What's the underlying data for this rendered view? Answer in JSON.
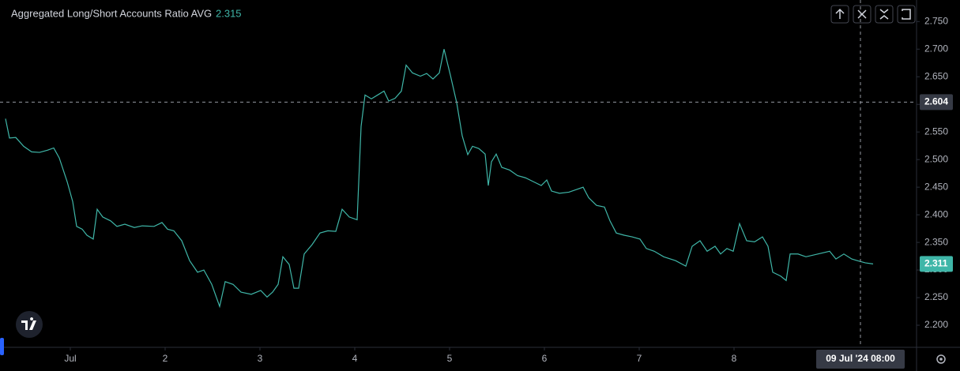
{
  "chart_data": {
    "type": "line",
    "title": "Aggregated Long/Short Accounts Ratio AVG",
    "legend_value": 2.315,
    "last_value": 2.311,
    "color": "#3fb6a8",
    "crosshair": {
      "y": 2.604,
      "x": {
        "value": 200,
        "label": "09 Jul '24 08:00"
      }
    },
    "x": [
      -16.4,
      -15.4,
      -13.8,
      -11.8,
      -9.8,
      -7.8,
      -5.8,
      -4.2,
      -2.8,
      -0.8,
      0.6,
      1.6,
      3,
      4.2,
      5.8,
      6.8,
      8.2,
      10.2,
      11.8,
      13.8,
      16.2,
      18.2,
      21.2,
      23.2,
      24.6,
      26.2,
      28.2,
      30.2,
      32.2,
      33.8,
      35.8,
      37.8,
      39.2,
      41.2,
      43.2,
      45.8,
      48.2,
      49.8,
      51.2,
      52.6,
      53.8,
      55.4,
      56.6,
      57.8,
      59.2,
      61.2,
      63.2,
      65.2,
      67.2,
      68.8,
      70.6,
      72.6,
      73.6,
      74.6,
      76.2,
      77.8,
      79.4,
      80.6,
      82.2,
      83.8,
      85,
      86.6,
      88.6,
      90.2,
      91.8,
      93.4,
      94.6,
      96.2,
      97.8,
      99.2,
      100.6,
      101.8,
      103.4,
      105,
      105.8,
      106.6,
      107.8,
      109.2,
      111.2,
      113.2,
      115.2,
      117.2,
      119.2,
      120.6,
      121.8,
      123.8,
      126.2,
      128.2,
      129.8,
      131.2,
      133.2,
      135.2,
      136.6,
      138.2,
      140.2,
      142.2,
      144.2,
      145.8,
      147.8,
      150.2,
      153.2,
      155.8,
      157.4,
      159.4,
      161.2,
      163.2,
      164.6,
      166.2,
      167.8,
      169.4,
      171.2,
      173.2,
      175.2,
      176.6,
      177.8,
      179.8,
      181.2,
      182.2,
      184.2,
      186.2,
      189.2,
      192.2,
      193.8,
      195.8,
      197.8,
      199.2,
      201.2,
      203.2
    ],
    "values": [
      2.574,
      2.539,
      2.54,
      2.524,
      2.514,
      2.513,
      2.517,
      2.521,
      2.503,
      2.46,
      2.424,
      2.379,
      2.374,
      2.363,
      2.356,
      2.41,
      2.396,
      2.389,
      2.379,
      2.383,
      2.377,
      2.38,
      2.379,
      2.386,
      2.374,
      2.371,
      2.353,
      2.317,
      2.296,
      2.3,
      2.274,
      2.234,
      2.279,
      2.274,
      2.26,
      2.256,
      2.263,
      2.251,
      2.26,
      2.274,
      2.324,
      2.31,
      2.267,
      2.267,
      2.329,
      2.346,
      2.367,
      2.371,
      2.37,
      2.41,
      2.396,
      2.391,
      2.56,
      2.617,
      2.61,
      2.617,
      2.624,
      2.606,
      2.611,
      2.624,
      2.671,
      2.657,
      2.651,
      2.656,
      2.646,
      2.657,
      2.7,
      2.653,
      2.603,
      2.543,
      2.509,
      2.524,
      2.52,
      2.51,
      2.453,
      2.496,
      2.51,
      2.486,
      2.481,
      2.471,
      2.467,
      2.46,
      2.453,
      2.463,
      2.443,
      2.439,
      2.441,
      2.446,
      2.45,
      2.431,
      2.417,
      2.414,
      2.389,
      2.367,
      2.363,
      2.36,
      2.356,
      2.339,
      2.334,
      2.324,
      2.317,
      2.307,
      2.343,
      2.353,
      2.334,
      2.343,
      2.329,
      2.339,
      2.334,
      2.384,
      2.353,
      2.351,
      2.36,
      2.343,
      2.296,
      2.289,
      2.281,
      2.329,
      2.329,
      2.324,
      2.329,
      2.334,
      2.32,
      2.329,
      2.32,
      2.317,
      2.313,
      2.311
    ],
    "xlim": [
      -17.8,
      214.2
    ],
    "xticks": [
      {
        "value": 0,
        "label": "Jul"
      },
      {
        "value": 24,
        "label": "2"
      },
      {
        "value": 48,
        "label": "3"
      },
      {
        "value": 72,
        "label": "4"
      },
      {
        "value": 96,
        "label": "5"
      },
      {
        "value": 120,
        "label": "6"
      },
      {
        "value": 144,
        "label": "7"
      },
      {
        "value": 168,
        "label": "8"
      }
    ],
    "ylim": [
      2.16,
      2.789
    ],
    "yticks": [
      {
        "value": 2.2,
        "label": "2.200"
      },
      {
        "value": 2.25,
        "label": "2.250"
      },
      {
        "value": 2.3,
        "label": "2.300"
      },
      {
        "value": 2.35,
        "label": "2.350"
      },
      {
        "value": 2.4,
        "label": "2.400"
      },
      {
        "value": 2.45,
        "label": "2.450"
      },
      {
        "value": 2.5,
        "label": "2.500"
      },
      {
        "value": 2.55,
        "label": "2.550"
      },
      {
        "value": 2.6,
        "label": "2.600"
      },
      {
        "value": 2.65,
        "label": "2.650"
      },
      {
        "value": 2.7,
        "label": "2.700"
      },
      {
        "value": 2.75,
        "label": "2.750"
      }
    ],
    "grid": false
  }
}
